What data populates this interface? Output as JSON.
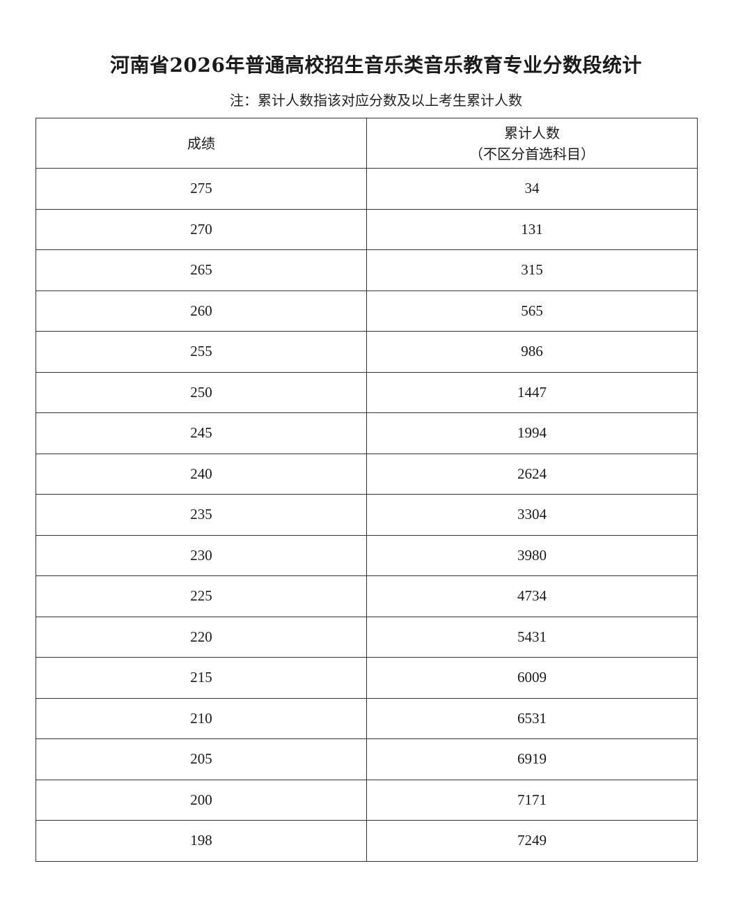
{
  "title": "河南省2026年普通高校招生音乐类音乐教育专业分数段统计",
  "note": "注：累计人数指该对应分数及以上考生累计人数",
  "table": {
    "headers": [
      "成绩",
      "累计人数",
      "（不区分首选科目）"
    ],
    "rows": [
      [
        "275",
        "34"
      ],
      [
        "270",
        "131"
      ],
      [
        "265",
        "315"
      ],
      [
        "260",
        "565"
      ],
      [
        "255",
        "986"
      ],
      [
        "250",
        "1447"
      ],
      [
        "245",
        "1994"
      ],
      [
        "240",
        "2624"
      ],
      [
        "235",
        "3304"
      ],
      [
        "230",
        "3980"
      ],
      [
        "225",
        "4734"
      ],
      [
        "220",
        "5431"
      ],
      [
        "215",
        "6009"
      ],
      [
        "210",
        "6531"
      ],
      [
        "205",
        "6919"
      ],
      [
        "200",
        "7171"
      ],
      [
        "198",
        "7249"
      ]
    ]
  }
}
